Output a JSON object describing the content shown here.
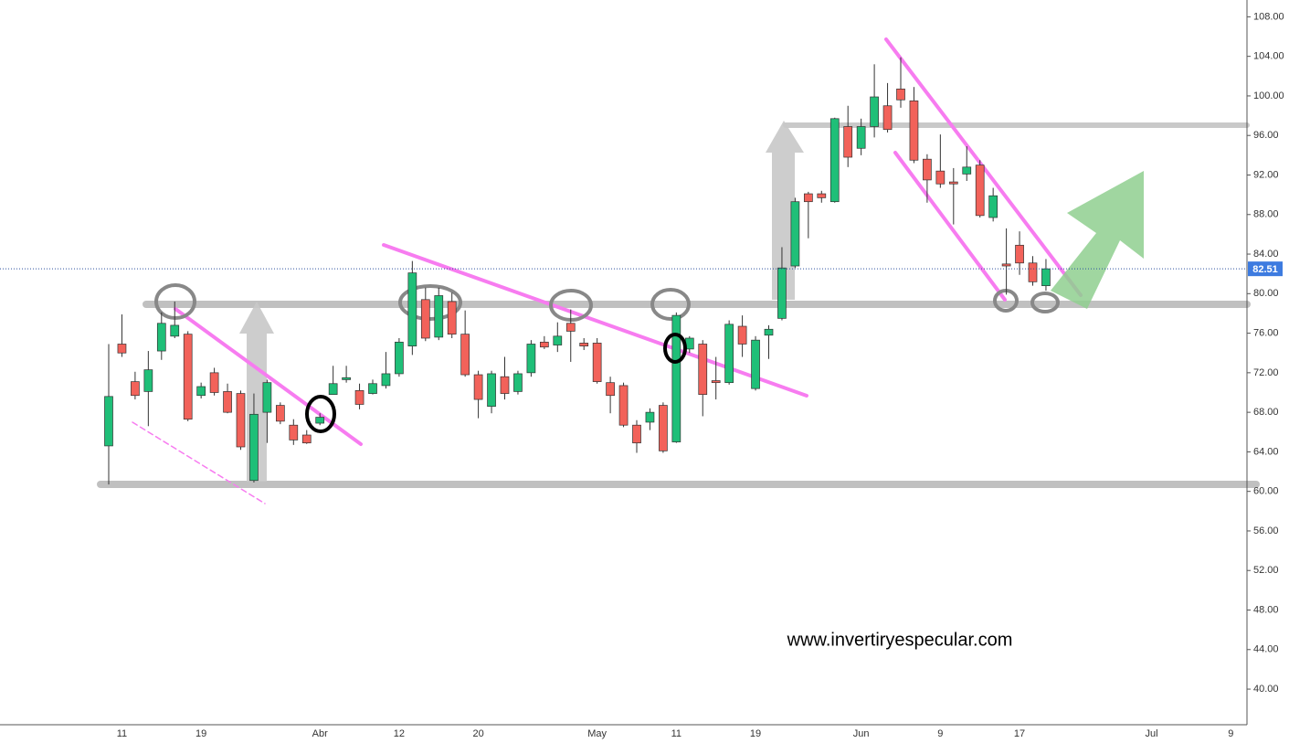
{
  "chart_data": {
    "type": "candlestick",
    "categories": [
      null,
      "11",
      null,
      null,
      null,
      null,
      null,
      "19",
      null,
      null,
      null,
      null,
      null,
      null,
      null,
      null,
      "Abr",
      null,
      null,
      null,
      null,
      null,
      "12",
      null,
      null,
      null,
      null,
      null,
      "20",
      null,
      null,
      null,
      null,
      null,
      null,
      null,
      null,
      "May",
      null,
      null,
      null,
      null,
      null,
      "11",
      null,
      null,
      null,
      null,
      null,
      "19",
      null,
      null,
      null,
      null,
      null,
      null,
      null,
      "Jun",
      null,
      null,
      null,
      null,
      null,
      "9",
      null,
      null,
      null,
      null,
      null,
      "17",
      null,
      null,
      null,
      null,
      null,
      null,
      null,
      null,
      null,
      "Jul",
      null,
      null,
      null,
      null,
      null,
      "9",
      null
    ],
    "open": [
      64.6,
      74.9,
      71.1,
      70.1,
      74.2,
      75.7,
      75.9,
      69.7,
      72.0,
      70.1,
      69.9,
      61.1,
      68.0,
      68.7,
      66.7,
      65.7,
      66.9,
      69.8,
      71.3,
      70.2,
      69.9,
      70.7,
      71.9,
      74.7,
      79.4,
      75.6,
      79.2,
      75.9,
      71.8,
      68.6,
      71.6,
      70.1,
      72.0,
      75.1,
      74.8,
      77.0,
      75.0,
      75.0,
      71.0,
      70.7,
      66.7,
      67.0,
      68.7,
      65.0,
      74.4,
      74.9,
      71.2,
      71.0,
      76.7,
      70.4,
      75.8,
      77.5,
      82.8,
      90.1,
      90.1,
      89.3,
      96.9,
      94.7,
      96.9,
      99.0,
      100.7,
      99.5,
      93.6,
      92.4,
      91.3,
      92.1,
      93.0,
      87.7,
      83.0,
      84.9,
      83.1,
      80.8,
      null,
      null,
      null,
      null,
      null,
      null,
      null,
      null,
      null,
      null,
      null,
      null,
      null,
      null,
      null
    ],
    "high": [
      74.9,
      77.9,
      72.1,
      74.2,
      78.1,
      79.2,
      76.2,
      71.0,
      72.5,
      70.9,
      70.2,
      69.9,
      71.3,
      69.0,
      67.3,
      66.2,
      67.9,
      72.7,
      72.7,
      70.9,
      71.3,
      74.1,
      75.5,
      83.3,
      80.6,
      80.6,
      80.1,
      78.3,
      72.2,
      72.2,
      73.6,
      72.2,
      75.3,
      75.7,
      77.1,
      78.4,
      75.5,
      75.5,
      71.6,
      71.0,
      67.2,
      68.4,
      69.0,
      78.1,
      75.7,
      75.3,
      73.6,
      77.3,
      77.8,
      75.7,
      76.8,
      84.7,
      89.7,
      90.3,
      90.4,
      97.8,
      99.0,
      97.7,
      103.2,
      101.3,
      103.9,
      100.9,
      94.1,
      96.1,
      92.7,
      94.9,
      93.5,
      90.7,
      86.6,
      86.3,
      83.8,
      83.5,
      null,
      null,
      null,
      null,
      null,
      null,
      null,
      null,
      null,
      null,
      null,
      null,
      null,
      null,
      null
    ],
    "low": [
      60.7,
      73.6,
      69.3,
      66.6,
      73.3,
      75.5,
      67.1,
      69.4,
      69.7,
      67.9,
      64.2,
      60.9,
      64.9,
      66.8,
      64.7,
      64.8,
      66.7,
      69.8,
      71.0,
      68.3,
      69.8,
      70.4,
      71.6,
      73.8,
      75.2,
      75.3,
      75.5,
      71.6,
      67.4,
      67.9,
      69.3,
      69.8,
      71.6,
      74.4,
      74.1,
      73.1,
      74.3,
      70.9,
      67.9,
      66.5,
      63.9,
      66.2,
      63.9,
      64.9,
      74.0,
      67.6,
      69.3,
      70.8,
      73.6,
      70.2,
      73.4,
      77.3,
      82.6,
      85.6,
      89.2,
      89.2,
      92.8,
      94.0,
      95.8,
      96.3,
      98.8,
      93.2,
      89.2,
      90.7,
      87.0,
      91.4,
      87.7,
      87.3,
      79.9,
      81.9,
      80.8,
      80.3,
      null,
      null,
      null,
      null,
      null,
      null,
      null,
      null,
      null,
      null,
      null,
      null,
      null,
      null,
      null
    ],
    "close": [
      69.6,
      74.0,
      69.7,
      72.3,
      77.0,
      76.8,
      67.3,
      70.6,
      70.0,
      68.0,
      64.5,
      67.8,
      71.0,
      67.1,
      65.2,
      64.9,
      67.5,
      70.9,
      71.5,
      68.8,
      70.9,
      71.9,
      75.1,
      82.1,
      75.5,
      79.8,
      75.9,
      71.8,
      69.3,
      71.9,
      69.9,
      71.9,
      74.9,
      74.6,
      75.7,
      76.2,
      74.7,
      71.1,
      69.7,
      66.7,
      64.9,
      68.0,
      64.1,
      77.8,
      75.5,
      69.8,
      71.0,
      76.9,
      74.9,
      75.3,
      76.4,
      82.6,
      89.3,
      89.3,
      89.7,
      97.7,
      93.8,
      96.9,
      99.9,
      96.6,
      99.6,
      93.5,
      91.5,
      91.1,
      91.1,
      92.8,
      87.9,
      89.9,
      82.8,
      83.1,
      81.2,
      82.51,
      null,
      null,
      null,
      null,
      null,
      null,
      null,
      null,
      null,
      null,
      null,
      null,
      null,
      null,
      null
    ],
    "up_color": "#1fbf78",
    "down_color": "#f2625a",
    "ylim": [
      36.4,
      109.7
    ],
    "yticks": [
      {
        "value": 108,
        "label": "108.00"
      },
      {
        "value": 104,
        "label": "104.00"
      },
      {
        "value": 100,
        "label": "100.00"
      },
      {
        "value": 96,
        "label": "96.00"
      },
      {
        "value": 92,
        "label": "92.00"
      },
      {
        "value": 88,
        "label": "88.00"
      },
      {
        "value": 84,
        "label": "84.00"
      },
      {
        "value": 80,
        "label": "80.00"
      },
      {
        "value": 76,
        "label": "76.00"
      },
      {
        "value": 72,
        "label": "72.00"
      },
      {
        "value": 68,
        "label": "68.00"
      },
      {
        "value": 64,
        "label": "64.00"
      },
      {
        "value": 60,
        "label": "60.00"
      },
      {
        "value": 56,
        "label": "56.00"
      },
      {
        "value": 52,
        "label": "52.00"
      },
      {
        "value": 48,
        "label": "48.00"
      },
      {
        "value": 44,
        "label": "44.00"
      },
      {
        "value": 40,
        "label": "40.00"
      }
    ],
    "last_price": 82.51,
    "watermark": "www.invertiryespecular.com"
  }
}
